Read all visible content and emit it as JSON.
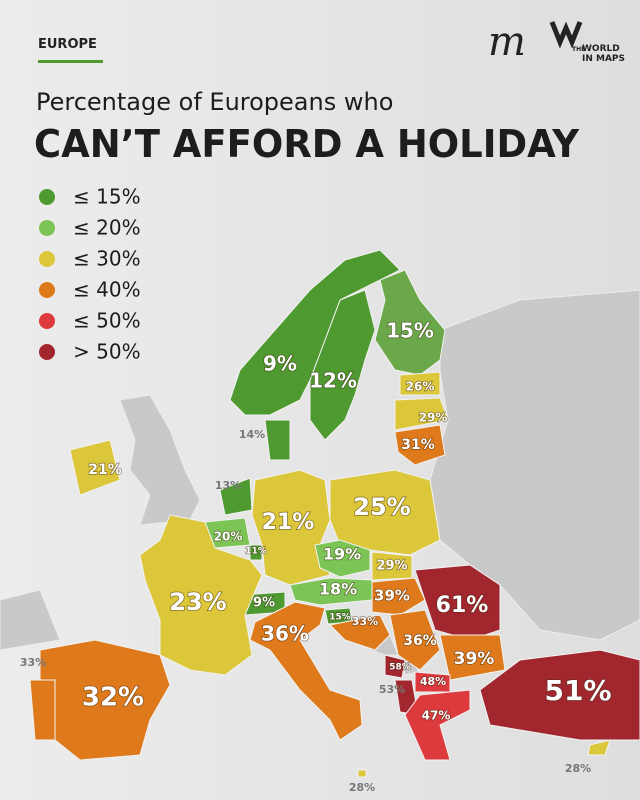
{
  "header": {
    "section": "EUROPE",
    "logo_mark": "m",
    "logo_text": [
      "THE",
      "WORLD",
      "IN MAPS"
    ],
    "title_line1": "Percentage of Europeans who",
    "title_line2": "CAN’T AFFORD A HOLIDAY"
  },
  "legend": [
    {
      "label": "≤ 15%",
      "color": "#4f9a30"
    },
    {
      "label": "≤ 20%",
      "color": "#7cc456"
    },
    {
      "label": "≤ 30%",
      "color": "#dcc63a"
    },
    {
      "label": "≤ 40%",
      "color": "#df7a1c"
    },
    {
      "label": "≤ 50%",
      "color": "#dd3a3e"
    },
    {
      "label": "> 50%",
      "color": "#a2262d"
    }
  ],
  "regions": [
    {
      "label": "15%",
      "color": "#6aa84a"
    },
    {
      "label": "12%",
      "color": "#4f9a30"
    },
    {
      "label": "9%",
      "color": "#4f9a30"
    },
    {
      "label": "14%",
      "color": "#4f9a30"
    },
    {
      "label": "26%",
      "color": "#dcc63a"
    },
    {
      "label": "29%",
      "color": "#dcc63a"
    },
    {
      "label": "31%",
      "color": "#df7a1c"
    },
    {
      "label": "21%",
      "color": "#dcc63a"
    },
    {
      "label": "13%",
      "color": "#4f9a30"
    },
    {
      "label": "20%",
      "color": "#7cc456"
    },
    {
      "label": "11%",
      "color": "#4f9a30"
    },
    {
      "label": "21%",
      "color": "#dcc63a"
    },
    {
      "label": "25%",
      "color": "#dcc63a"
    },
    {
      "label": "19%",
      "color": "#7cc456"
    },
    {
      "label": "29%",
      "color": "#dcc63a"
    },
    {
      "label": "18%",
      "color": "#7cc456"
    },
    {
      "label": "39%",
      "color": "#df7a1c"
    },
    {
      "label": "61%",
      "color": "#a2262d"
    },
    {
      "label": "9%",
      "color": "#4f9a30"
    },
    {
      "label": "23%",
      "color": "#dcc63a"
    },
    {
      "label": "36%",
      "color": "#df7a1c"
    },
    {
      "label": "15%",
      "color": "#4f9a30"
    },
    {
      "label": "33%",
      "color": "#df7a1c"
    },
    {
      "label": "36%",
      "color": "#df7a1c"
    },
    {
      "label": "39%",
      "color": "#df7a1c"
    },
    {
      "label": "58%",
      "color": "#a2262d"
    },
    {
      "label": "48%",
      "color": "#dd3a3e"
    },
    {
      "label": "53%",
      "color": "#a2262d"
    },
    {
      "label": "47%",
      "color": "#dd3a3e"
    },
    {
      "label": "51%",
      "color": "#a2262d"
    },
    {
      "label": "32%",
      "color": "#df7a1c"
    },
    {
      "label": "33%",
      "color": "#df7a1c"
    },
    {
      "label": "28%",
      "color": "#dcc63a"
    },
    {
      "label": "28%",
      "color": "#dcc63a"
    }
  ]
}
